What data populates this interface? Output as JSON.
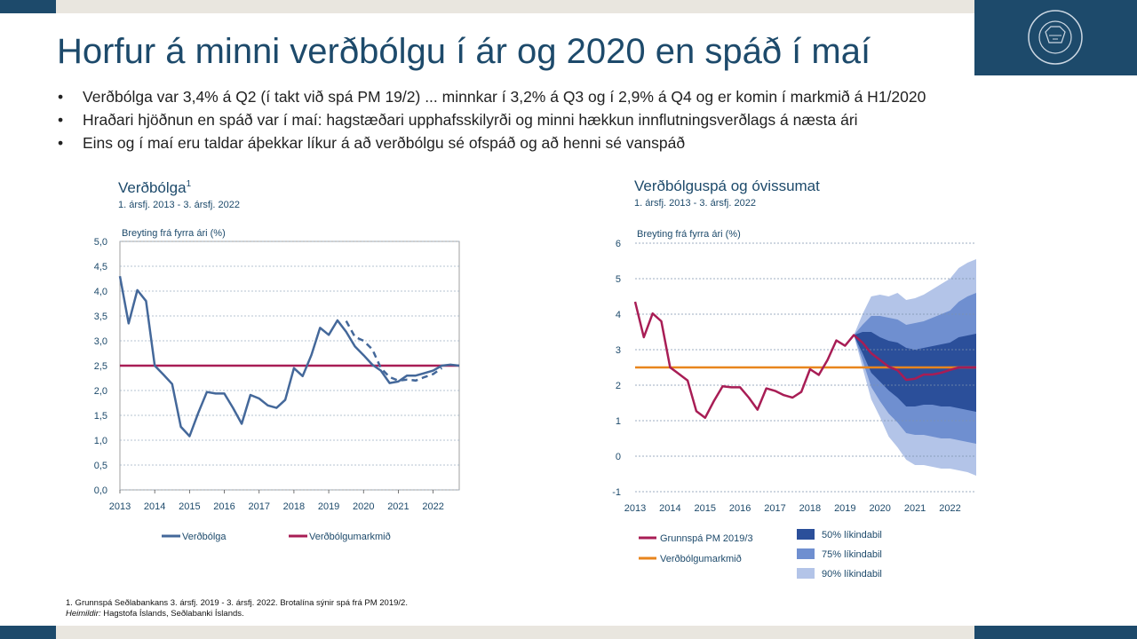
{
  "slide": {
    "title": "Horfur á minni verðbólgu í ár og 2020 en spáð í maí",
    "bullets": [
      "Verðbólga var 3,4% á Q2 (í takt við spá PM 19/2) ... minnkar í 3,2% á Q3 og í 2,9% á Q4 og er komin í markmið á H1/2020",
      "Hraðari hjöðnun en spáð var í maí: hagstæðari upphafsskilyrði og minni hækkun innflutningsverðlags á næsta ári",
      "Eins og í maí eru taldar áþekkar líkur á að verðbólgu sé ofspáð og að henni sé vanspáð"
    ],
    "footnote": "1. Grunnspá Seðlabankans 3. ársfj. 2019 - 3. ársfj. 2022. Brotalína sýnir spá frá PM 2019/2.",
    "sources_label": "Heimildir:",
    "sources_text": " Hagstofa Íslands, Seðlabanki Íslands.",
    "colors": {
      "brand": "#1d4a6b",
      "band": "#e9e6df"
    }
  },
  "chart_data": [
    {
      "type": "line",
      "title": "Verðbólga",
      "title_sup": "1",
      "subtitle": "1. ársfj. 2013 - 3. ársfj. 2022",
      "ylabel": "Breyting frá fyrra ári (%)",
      "ylim": [
        0,
        5
      ],
      "yticks": [
        "0,0",
        "0,5",
        "1,0",
        "1,5",
        "2,0",
        "2,5",
        "3,0",
        "3,5",
        "4,0",
        "4,5",
        "5,0"
      ],
      "ytick_values": [
        0,
        0.5,
        1,
        1.5,
        2,
        2.5,
        3,
        3.5,
        4,
        4.5,
        5
      ],
      "xticks": [
        "2013",
        "2014",
        "2015",
        "2016",
        "2017",
        "2018",
        "2019",
        "2020",
        "2021",
        "2022"
      ],
      "xlim": [
        2013.0,
        2022.75
      ],
      "grid": true,
      "legend": [
        "Verðbólga",
        "Verðbólgumarkmið"
      ],
      "colors": {
        "inflation": "#44689a",
        "target": "#a81d55"
      },
      "series": [
        {
          "name": "Verðbólga",
          "style": "solid",
          "x": [
            2013.0,
            2013.25,
            2013.5,
            2013.75,
            2014.0,
            2014.25,
            2014.5,
            2014.75,
            2015.0,
            2015.25,
            2015.5,
            2015.75,
            2016.0,
            2016.25,
            2016.5,
            2016.75,
            2017.0,
            2017.25,
            2017.5,
            2017.75,
            2018.0,
            2018.25,
            2018.5,
            2018.75,
            2019.0,
            2019.25,
            2019.5,
            2019.75,
            2020.0,
            2020.25,
            2020.5,
            2020.75,
            2021.0,
            2021.25,
            2021.5,
            2021.75,
            2022.0,
            2022.25,
            2022.5,
            2022.75
          ],
          "y": [
            4.3,
            3.35,
            4.02,
            3.8,
            2.5,
            2.32,
            2.13,
            1.27,
            1.08,
            1.55,
            1.97,
            1.94,
            1.94,
            1.65,
            1.33,
            1.91,
            1.84,
            1.7,
            1.65,
            1.81,
            2.45,
            2.29,
            2.71,
            3.26,
            3.12,
            3.41,
            3.18,
            2.89,
            2.71,
            2.52,
            2.4,
            2.15,
            2.18,
            2.3,
            2.3,
            2.35,
            2.4,
            2.5,
            2.52,
            2.5
          ]
        },
        {
          "name": "Spá PM 2019/2",
          "style": "dashed",
          "x": [
            2019.5,
            2019.75,
            2020.0,
            2020.25,
            2020.5,
            2020.75,
            2021.0,
            2021.25,
            2021.5,
            2021.75,
            2022.0,
            2022.25
          ],
          "y": [
            3.4,
            3.08,
            3.0,
            2.83,
            2.45,
            2.27,
            2.2,
            2.22,
            2.2,
            2.27,
            2.33,
            2.45
          ]
        },
        {
          "name": "Verðbólgumarkmið",
          "style": "solid",
          "x": [
            2013.0,
            2022.75
          ],
          "y": [
            2.5,
            2.5
          ]
        }
      ]
    },
    {
      "type": "area",
      "title": "Verðbólguspá og óvissumat",
      "subtitle": "1. ársfj. 2013 - 3. ársfj. 2022",
      "ylabel": "Breyting frá fyrra ári (%)",
      "ylim": [
        -1,
        6
      ],
      "yticks": [
        "-1",
        "0",
        "1",
        "2",
        "3",
        "4",
        "5",
        "6"
      ],
      "ytick_values": [
        -1,
        0,
        1,
        2,
        3,
        4,
        5,
        6
      ],
      "xticks": [
        "2013",
        "2014",
        "2015",
        "2016",
        "2017",
        "2018",
        "2019",
        "2020",
        "2021",
        "2022"
      ],
      "xlim": [
        2013.0,
        2022.75
      ],
      "grid": true,
      "legend": [
        "Grunnspá PM 2019/3",
        "Verðbólgumarkmið",
        "50% líkindabil",
        "75% líkindabil",
        "90% líkindabil"
      ],
      "colors": {
        "forecast": "#a81d55",
        "target": "#e8851d",
        "band50": "#2b4f9a",
        "band75": "#6f8fd0",
        "band90": "#b3c4e8"
      },
      "series": [
        {
          "name": "Grunnspá PM 2019/3",
          "x": [
            2013.0,
            2013.25,
            2013.5,
            2013.75,
            2014.0,
            2014.25,
            2014.5,
            2014.75,
            2015.0,
            2015.25,
            2015.5,
            2015.75,
            2016.0,
            2016.25,
            2016.5,
            2016.75,
            2017.0,
            2017.25,
            2017.5,
            2017.75,
            2018.0,
            2018.25,
            2018.5,
            2018.75,
            2019.0,
            2019.25,
            2019.5,
            2019.75,
            2020.0,
            2020.25,
            2020.5,
            2020.75,
            2021.0,
            2021.25,
            2021.5,
            2021.75,
            2022.0,
            2022.25,
            2022.5,
            2022.75
          ],
          "y": [
            4.35,
            3.35,
            4.02,
            3.8,
            2.5,
            2.32,
            2.13,
            1.27,
            1.08,
            1.55,
            1.97,
            1.94,
            1.94,
            1.65,
            1.31,
            1.91,
            1.84,
            1.72,
            1.65,
            1.81,
            2.45,
            2.29,
            2.71,
            3.26,
            3.11,
            3.41,
            3.2,
            2.9,
            2.71,
            2.52,
            2.42,
            2.15,
            2.18,
            2.3,
            2.3,
            2.35,
            2.43,
            2.5,
            2.5,
            2.5
          ]
        },
        {
          "name": "Verðbólgumarkmið",
          "x": [
            2013.0,
            2022.75
          ],
          "y": [
            2.5,
            2.5
          ]
        }
      ],
      "bands": {
        "x": [
          2019.25,
          2019.5,
          2019.75,
          2020.0,
          2020.25,
          2020.5,
          2020.75,
          2021.0,
          2021.25,
          2021.5,
          2021.75,
          2022.0,
          2022.25,
          2022.5,
          2022.75
        ],
        "p90_upper": [
          3.41,
          4.0,
          4.5,
          4.55,
          4.5,
          4.6,
          4.4,
          4.45,
          4.55,
          4.7,
          4.85,
          5.0,
          5.3,
          5.45,
          5.55
        ],
        "p75_upper": [
          3.41,
          3.7,
          3.95,
          3.95,
          3.9,
          3.85,
          3.7,
          3.75,
          3.8,
          3.9,
          4.0,
          4.1,
          4.35,
          4.5,
          4.6
        ],
        "p50_upper": [
          3.41,
          3.5,
          3.5,
          3.35,
          3.25,
          3.2,
          3.05,
          3.0,
          3.05,
          3.1,
          3.15,
          3.2,
          3.35,
          3.4,
          3.45
        ],
        "p50_lower": [
          3.41,
          2.9,
          2.35,
          2.1,
          1.85,
          1.65,
          1.4,
          1.4,
          1.45,
          1.45,
          1.4,
          1.4,
          1.35,
          1.3,
          1.25
        ],
        "p75_lower": [
          3.41,
          2.7,
          1.95,
          1.55,
          1.2,
          0.95,
          0.65,
          0.6,
          0.6,
          0.55,
          0.5,
          0.5,
          0.45,
          0.4,
          0.35
        ],
        "p90_lower": [
          3.41,
          2.5,
          1.6,
          1.1,
          0.55,
          0.25,
          -0.1,
          -0.25,
          -0.25,
          -0.3,
          -0.35,
          -0.35,
          -0.4,
          -0.45,
          -0.55
        ]
      }
    }
  ]
}
